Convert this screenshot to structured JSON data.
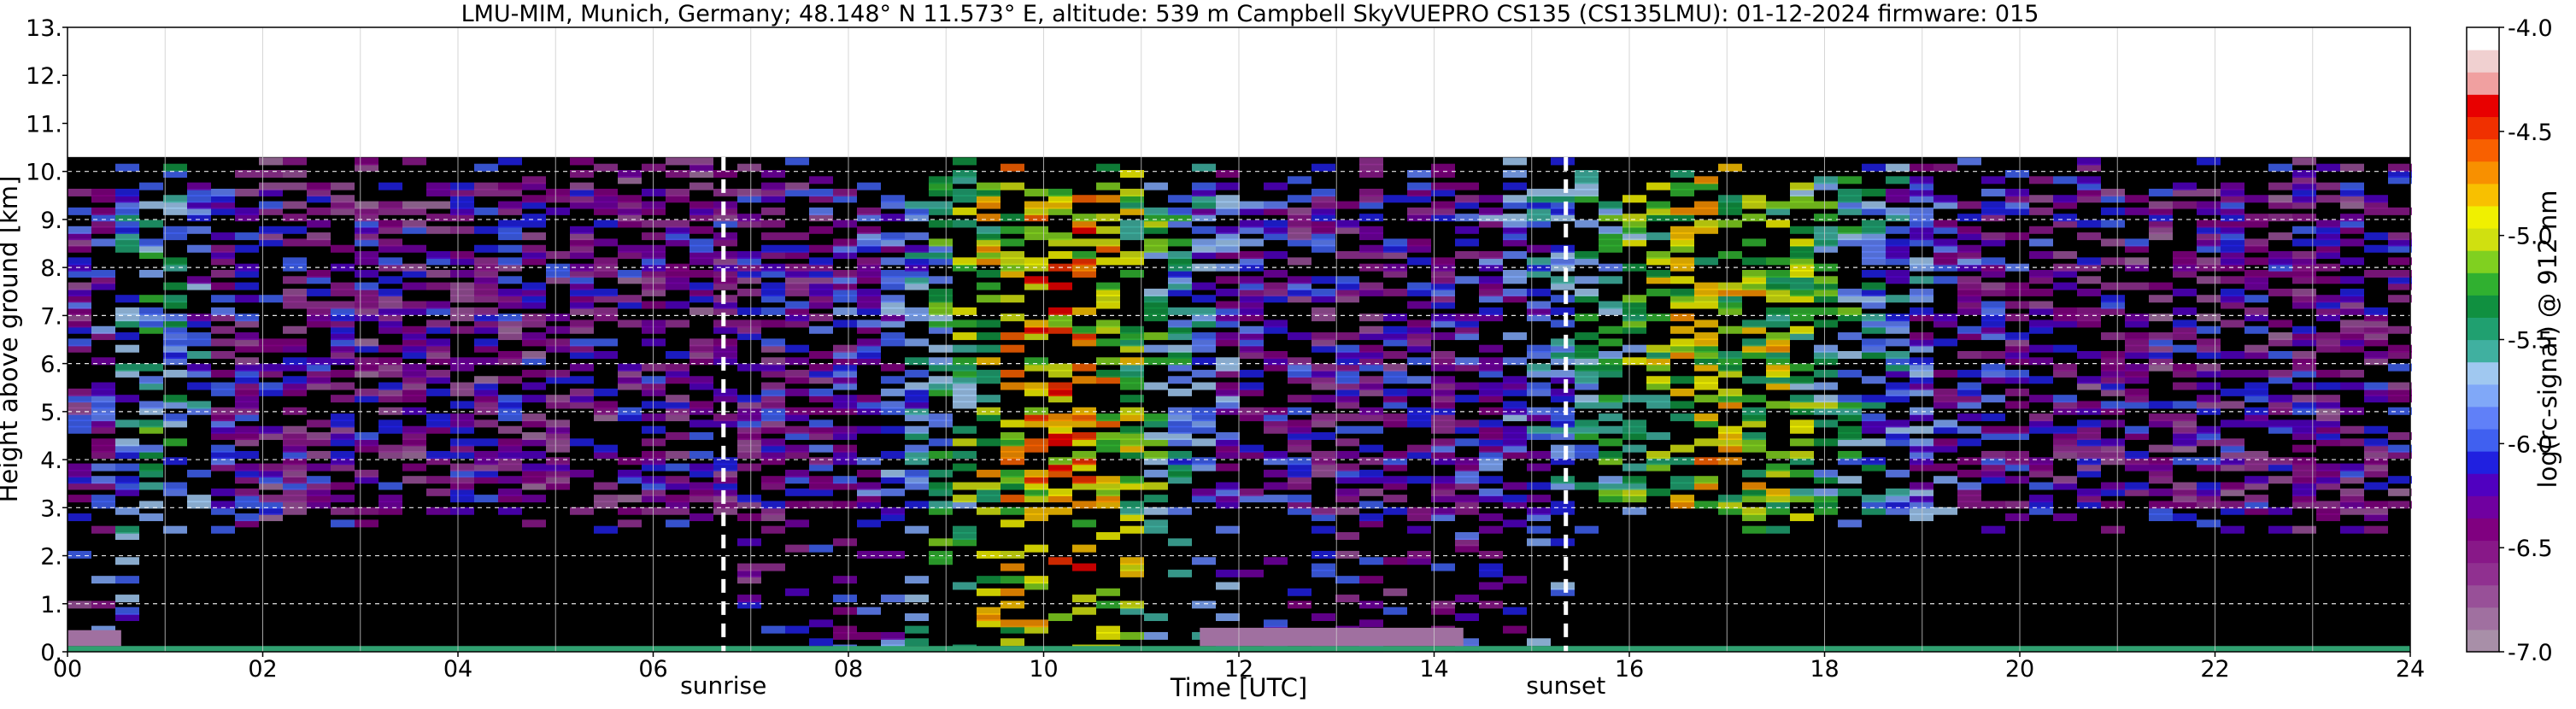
{
  "chart_data": {
    "type": "heatmap",
    "title": "LMU-MIM, Munich, Germany; 48.148° N 11.573° E, altitude: 539 m    Campbell SkyVUEPRO CS135 (CS135LMU): 01-12-2024    firmware: 015",
    "xlabel": "Time [UTC]",
    "ylabel": "Height above ground [km]",
    "xlim": [
      0,
      24
    ],
    "ylim": [
      0,
      13
    ],
    "x_ticks": [
      "00",
      "02",
      "04",
      "06",
      "08",
      "10",
      "12",
      "14",
      "16",
      "18",
      "20",
      "22",
      "24"
    ],
    "y_ticks": [
      "0.",
      "1.",
      "2.",
      "3.",
      "4.",
      "5.",
      "6.",
      "7.",
      "8.",
      "9.",
      "10.",
      "11.",
      "12.",
      "13."
    ],
    "grid": true,
    "data_top_km": 10.3,
    "colorbar": {
      "label": "log(rc-signal) @ 912 nm",
      "range": [
        -7.0,
        -4.0
      ],
      "ticks": [
        "-4.0",
        "-4.5",
        "-5.0",
        "-5.5",
        "-6.0",
        "-6.5",
        "-7.0"
      ],
      "colors": [
        "#a88fa8",
        "#a070a0",
        "#985098",
        "#903090",
        "#881888",
        "#800080",
        "#7000a0",
        "#5000c0",
        "#2020e0",
        "#4060f0",
        "#6080f8",
        "#80a8f8",
        "#a0c8f0",
        "#40b0a0",
        "#20a070",
        "#109040",
        "#30b030",
        "#80d020",
        "#d0e010",
        "#f0f000",
        "#f8c000",
        "#f89000",
        "#f86000",
        "#f03000",
        "#e80000",
        "#f0a0a0",
        "#f0d0d0",
        "#ffffff"
      ]
    },
    "annotations": [
      {
        "label": "sunrise",
        "x": 6.72
      },
      {
        "label": "sunset",
        "x": 15.35
      }
    ]
  }
}
